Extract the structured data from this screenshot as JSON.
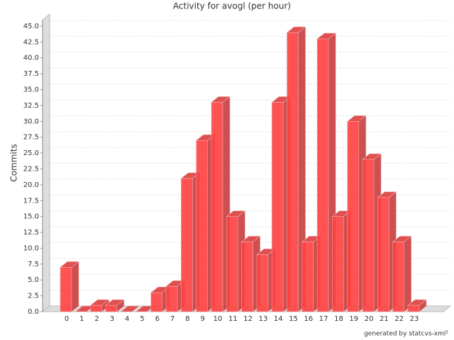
{
  "chart_data": {
    "type": "bar3d",
    "title": "Activity for avogl (per hour)",
    "y_label": "Commits",
    "footer": "generated by statcvs-xml²",
    "categories": [
      "0",
      "1",
      "2",
      "3",
      "4",
      "5",
      "6",
      "7",
      "8",
      "9",
      "10",
      "11",
      "12",
      "13",
      "14",
      "15",
      "16",
      "17",
      "18",
      "19",
      "20",
      "21",
      "22",
      "23"
    ],
    "values": [
      7,
      0,
      1,
      1,
      0,
      0,
      3,
      4,
      21,
      27,
      33,
      15,
      11,
      9,
      33,
      44,
      11,
      43,
      15,
      30,
      24,
      18,
      11,
      1
    ],
    "color": "#ff4040",
    "ylim": [
      0,
      46
    ],
    "yticks": [
      {
        "value": 0,
        "label": "0.0"
      },
      {
        "value": 2.5,
        "label": "2.5"
      },
      {
        "value": 5,
        "label": "5.0"
      },
      {
        "value": 7.5,
        "label": "7.5"
      },
      {
        "value": 10,
        "label": "10.0"
      },
      {
        "value": 12.5,
        "label": "12.5"
      },
      {
        "value": 15,
        "label": "15.0"
      },
      {
        "value": 17.5,
        "label": "17.5"
      },
      {
        "value": 20,
        "label": "20.0"
      },
      {
        "value": 22.5,
        "label": "22.5"
      },
      {
        "value": 25,
        "label": "25.0"
      },
      {
        "value": 27.5,
        "label": "27.5"
      },
      {
        "value": 30,
        "label": "30.0"
      },
      {
        "value": 32.5,
        "label": "32.5"
      },
      {
        "value": 35,
        "label": "35.0"
      },
      {
        "value": 37.5,
        "label": "37.5"
      },
      {
        "value": 40,
        "label": "40.0"
      },
      {
        "value": 42.5,
        "label": "42.5"
      },
      {
        "value": 45,
        "label": "45.0"
      }
    ],
    "grid": true
  }
}
